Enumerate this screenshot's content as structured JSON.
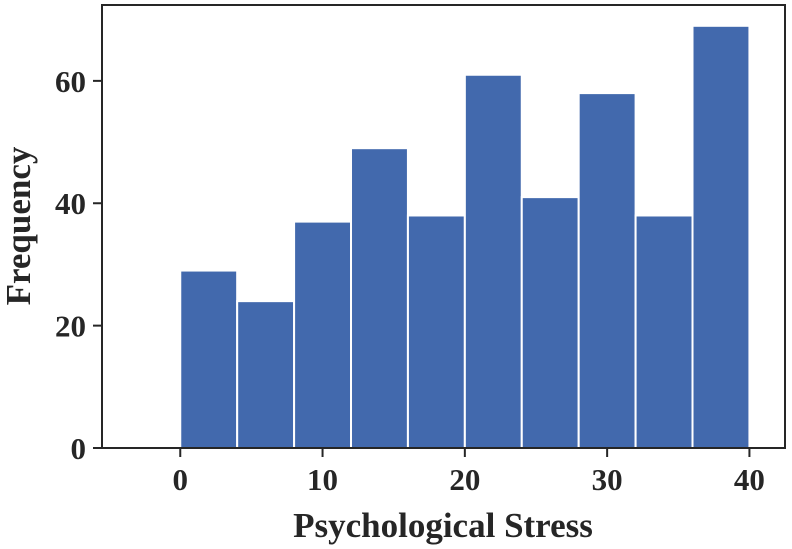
{
  "chart_data": {
    "type": "histogram",
    "bin_edges": [
      0,
      4,
      8,
      12,
      16,
      20,
      24,
      28,
      32,
      36,
      40
    ],
    "values": [
      29,
      24,
      37,
      49,
      38,
      61,
      41,
      58,
      38,
      69
    ],
    "xlabel": "Psychological Stress",
    "ylabel": "Frequency",
    "xlim": [
      -5.5,
      42.5
    ],
    "ylim": [
      0,
      72.4
    ],
    "xticks": [
      0,
      10,
      20,
      30,
      40
    ],
    "yticks": [
      0,
      20,
      40,
      60
    ],
    "bar_color": "#4269ad",
    "edge_color": "#ffffff",
    "grid": false
  }
}
